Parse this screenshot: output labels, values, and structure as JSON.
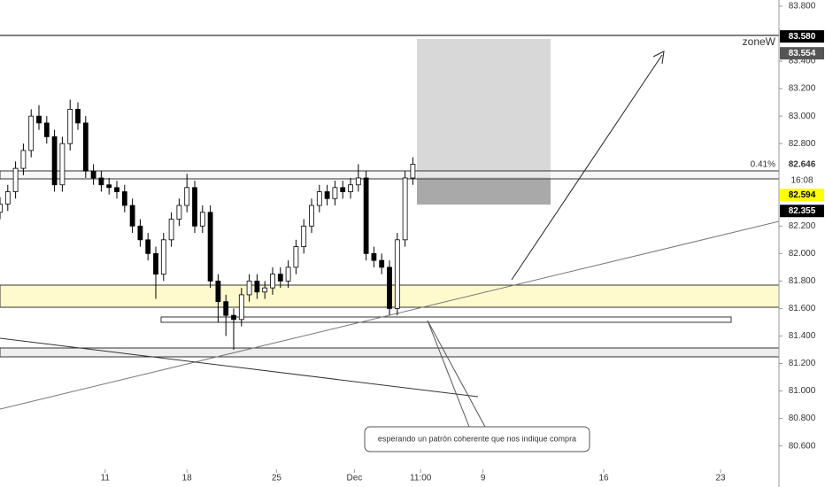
{
  "chart_data": {
    "type": "candlestick",
    "x": [
      0,
      2,
      4,
      6,
      8,
      10,
      12,
      14,
      16,
      18,
      20,
      22,
      24,
      26,
      28,
      30,
      32,
      34,
      36,
      38,
      40,
      42,
      44,
      46,
      48,
      50,
      52,
      54,
      56,
      58,
      60,
      62,
      64,
      66,
      68,
      70,
      72,
      74,
      76,
      78,
      80,
      82,
      84,
      86,
      88,
      90,
      92,
      94,
      96,
      98,
      100,
      102,
      104,
      106
    ],
    "open": [
      82.3,
      82.36,
      82.45,
      82.62,
      82.75,
      83.0,
      82.95,
      82.85,
      82.5,
      82.8,
      83.05,
      82.95,
      82.6,
      82.55,
      82.5,
      82.48,
      82.45,
      82.35,
      82.2,
      82.1,
      82.0,
      81.85,
      82.1,
      82.25,
      82.35,
      82.48,
      82.2,
      82.3,
      81.8,
      81.65,
      81.55,
      81.52,
      81.7,
      81.8,
      81.72,
      81.75,
      81.85,
      81.8,
      81.9,
      82.05,
      82.2,
      82.35,
      82.45,
      82.4,
      82.48,
      82.45,
      82.5,
      82.55,
      82.0,
      81.95,
      81.9,
      81.6,
      82.1,
      82.55
    ],
    "high": [
      82.41,
      82.5,
      82.67,
      82.8,
      83.05,
      83.08,
      83.0,
      82.9,
      82.85,
      83.12,
      83.1,
      83.0,
      82.65,
      82.6,
      82.55,
      82.53,
      82.5,
      82.4,
      82.25,
      82.15,
      82.05,
      82.15,
      82.3,
      82.4,
      82.58,
      82.53,
      82.35,
      82.35,
      81.85,
      81.7,
      81.6,
      81.75,
      81.85,
      81.85,
      81.8,
      81.9,
      81.9,
      81.95,
      82.1,
      82.25,
      82.4,
      82.5,
      82.5,
      82.53,
      82.53,
      82.55,
      82.65,
      82.6,
      82.05,
      82.0,
      81.95,
      82.15,
      82.6,
      82.7
    ],
    "low": [
      82.25,
      82.31,
      82.4,
      82.57,
      82.7,
      82.9,
      82.8,
      82.45,
      82.45,
      82.75,
      82.9,
      82.55,
      82.5,
      82.45,
      82.43,
      82.4,
      82.3,
      82.15,
      82.05,
      81.95,
      81.67,
      81.8,
      82.05,
      82.2,
      82.3,
      82.15,
      82.15,
      81.75,
      81.5,
      81.4,
      81.3,
      81.47,
      81.65,
      81.67,
      81.67,
      81.7,
      81.75,
      81.75,
      81.85,
      82.0,
      82.15,
      82.3,
      82.35,
      82.35,
      82.4,
      82.4,
      82.45,
      81.95,
      81.9,
      81.85,
      81.55,
      81.55,
      82.05,
      82.5
    ],
    "close": [
      82.36,
      82.45,
      82.62,
      82.75,
      83.0,
      82.95,
      82.85,
      82.5,
      82.8,
      83.05,
      82.95,
      82.6,
      82.55,
      82.5,
      82.48,
      82.45,
      82.35,
      82.2,
      82.1,
      82.0,
      81.85,
      82.1,
      82.25,
      82.35,
      82.48,
      82.2,
      82.3,
      81.8,
      81.65,
      81.55,
      81.52,
      81.7,
      81.8,
      81.72,
      81.75,
      81.85,
      81.8,
      81.9,
      82.05,
      82.2,
      82.35,
      82.45,
      82.4,
      82.48,
      82.45,
      82.5,
      82.55,
      82.0,
      81.95,
      81.9,
      81.6,
      82.1,
      82.55,
      82.65
    ],
    "up_color": "#ffffff",
    "down_color": "#000000",
    "xlim": [
      0,
      200
    ],
    "ylim": [
      80.43,
      83.845
    ],
    "xticks": [
      {
        "value": 27,
        "label": "11"
      },
      {
        "value": 48,
        "label": "18"
      },
      {
        "value": 71,
        "label": "25"
      },
      {
        "value": 91,
        "label": "Dec"
      },
      {
        "value": 108,
        "label": "11:00"
      },
      {
        "value": 124,
        "label": "9"
      },
      {
        "value": 155,
        "label": "16"
      },
      {
        "value": 185,
        "label": "23"
      }
    ],
    "yticks": [
      {
        "value": 83.8,
        "label": "83.800"
      },
      {
        "value": 83.4,
        "label": "83.400"
      },
      {
        "value": 83.2,
        "label": "83.200"
      },
      {
        "value": 83.0,
        "label": "83.000"
      },
      {
        "value": 82.8,
        "label": "82.800"
      },
      {
        "value": 82.2,
        "label": "82.200"
      },
      {
        "value": 82.0,
        "label": "82.000"
      },
      {
        "value": 81.8,
        "label": "81.800"
      },
      {
        "value": 81.6,
        "label": "81.600"
      },
      {
        "value": 81.4,
        "label": "81.400"
      },
      {
        "value": 81.2,
        "label": "81.200"
      },
      {
        "value": 81.0,
        "label": "81.000"
      },
      {
        "value": 80.8,
        "label": "80.800"
      },
      {
        "value": 80.6,
        "label": "80.600"
      }
    ],
    "price_labels": [
      {
        "value": 83.58,
        "label": "83.580"
      },
      {
        "value": 83.554,
        "label": "83.554"
      },
      {
        "value": 82.646,
        "label": "82.646"
      },
      {
        "value": 82.594,
        "label": "82.594"
      },
      {
        "value": 82.355,
        "label": "82.355"
      }
    ],
    "countdown": "16:08",
    "change": "0.41%",
    "zone_label": "zoneW",
    "note": "esperando un patrón coherente que nos indique compra"
  }
}
